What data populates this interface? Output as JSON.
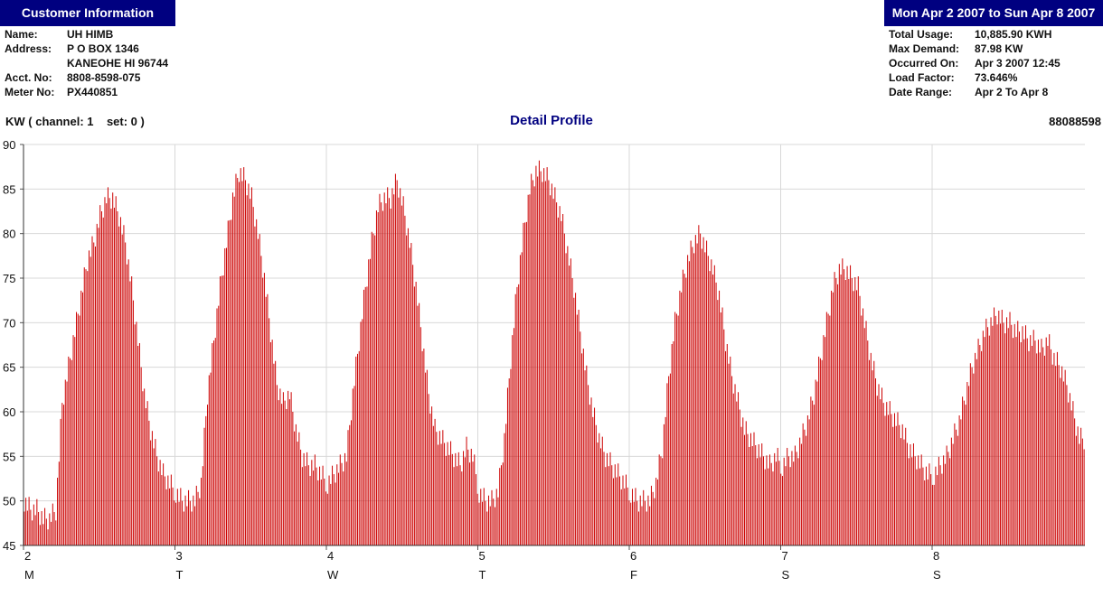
{
  "customer": {
    "header": "Customer Information",
    "fields": [
      {
        "label": "Name:",
        "value": "UH HIMB"
      },
      {
        "label": "Address:",
        "value": "P O BOX 1346"
      },
      {
        "label": "",
        "value": "KANEOHE HI  96744"
      },
      {
        "label": "Acct. No:",
        "value": "8808-8598-075"
      },
      {
        "label": "Meter No:",
        "value": "PX440851"
      }
    ]
  },
  "period": {
    "header": "Mon Apr 2 2007 to Sun Apr 8 2007",
    "fields": [
      {
        "label": "Total Usage:",
        "value": "10,885.90 KWH"
      },
      {
        "label": "Max Demand:",
        "value": "87.98 KW"
      },
      {
        "label": "Occurred On:",
        "value": "Apr 3 2007 12:45"
      },
      {
        "label": "Load Factor:",
        "value": "73.646%"
      },
      {
        "label": "Date Range:",
        "value": "Apr 2 To Apr 8"
      }
    ]
  },
  "chart_header": {
    "left": "KW ( channel: 1    set: 0 )",
    "title": "Detail Profile",
    "right": "88088598"
  },
  "chart_data": {
    "type": "bar",
    "title": "Detail Profile",
    "ylabel": "KW",
    "ylim": [
      45,
      90
    ],
    "yticks": [
      45,
      50,
      55,
      60,
      65,
      70,
      75,
      80,
      85,
      90
    ],
    "grid": true,
    "bar_color": "#cc0000",
    "interval": "15 min (estimated)",
    "x_days": [
      "2",
      "3",
      "4",
      "5",
      "6",
      "7",
      "8"
    ],
    "x_weekdays": [
      "M",
      "T",
      "W",
      "T",
      "F",
      "S",
      "S"
    ],
    "series": [
      {
        "values_by_hour": [
          [
            50,
            49,
            49,
            48,
            48,
            49,
            61,
            65,
            69,
            73,
            77,
            79,
            82,
            84,
            84,
            82,
            79,
            74,
            68,
            62,
            58,
            55,
            53,
            52
          ],
          [
            51,
            50,
            50,
            50,
            52,
            62,
            68,
            74,
            79,
            84,
            87,
            86,
            84,
            80,
            75,
            69,
            63,
            61,
            62,
            58,
            55,
            54,
            54,
            53
          ],
          [
            52,
            53,
            54,
            55,
            62,
            68,
            74,
            79,
            83,
            84,
            84,
            86,
            83,
            79,
            74,
            68,
            62,
            58,
            57,
            56,
            55,
            54,
            56,
            55
          ],
          [
            51,
            50,
            50,
            51,
            57,
            66,
            74,
            80,
            85,
            87,
            87,
            86,
            84,
            82,
            78,
            74,
            69,
            64,
            60,
            57,
            55,
            54,
            53,
            52
          ],
          [
            51,
            50,
            50,
            50,
            52,
            56,
            64,
            70,
            74,
            77,
            79,
            80,
            78,
            76,
            73,
            68,
            64,
            61,
            58,
            57,
            56,
            55,
            54,
            55
          ],
          [
            54,
            55,
            55,
            57,
            59,
            62,
            66,
            70,
            74,
            76,
            76,
            75,
            74,
            70,
            66,
            63,
            61,
            60,
            59,
            58,
            56,
            55,
            54,
            53
          ],
          [
            53,
            54,
            55,
            57,
            59,
            62,
            65,
            67,
            69,
            70,
            71,
            70,
            70,
            69,
            69,
            68,
            68,
            67,
            68,
            66,
            65,
            63,
            60,
            57
          ]
        ]
      }
    ]
  }
}
